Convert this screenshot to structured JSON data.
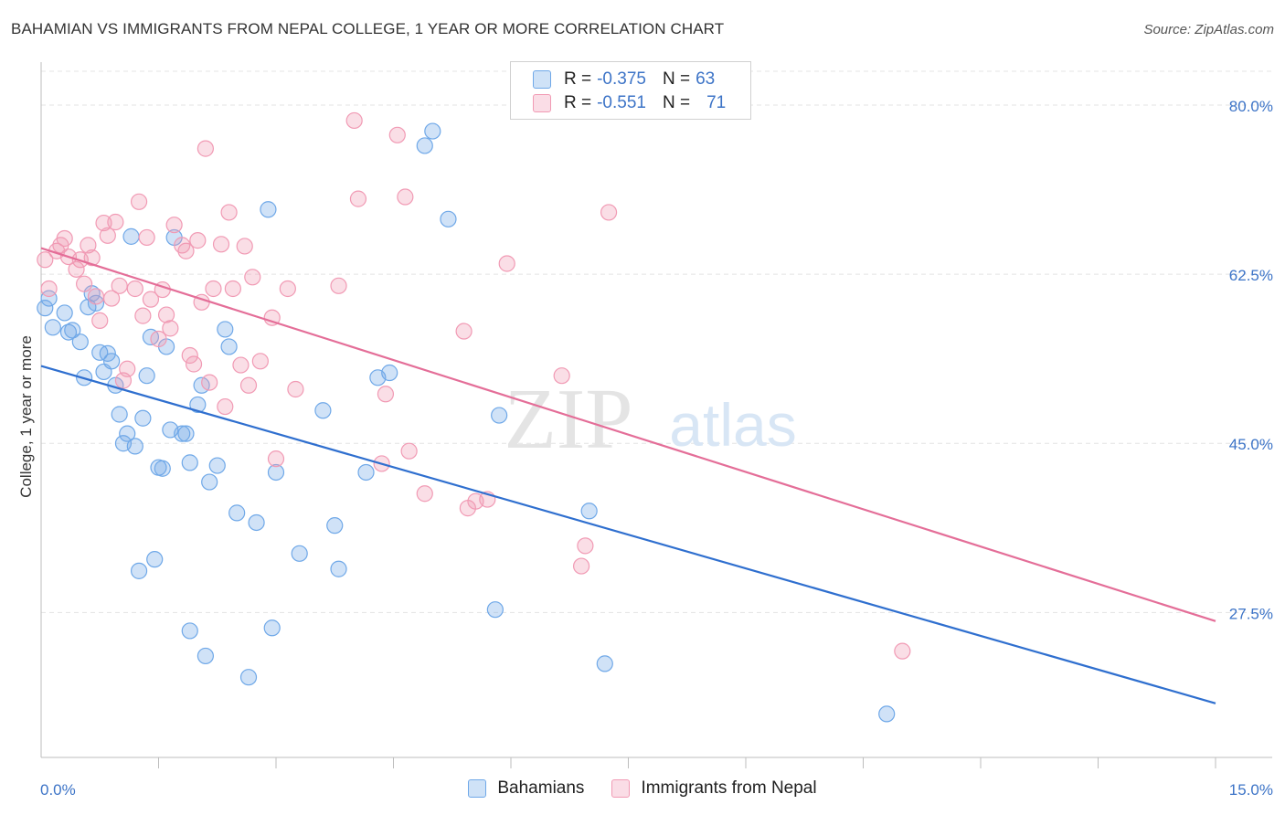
{
  "title": "BAHAMIAN VS IMMIGRANTS FROM NEPAL COLLEGE, 1 YEAR OR MORE CORRELATION CHART",
  "source": "Source: ZipAtlas.com",
  "watermark": {
    "zip": "ZIP",
    "atlas": "atlas"
  },
  "legend_box": {
    "rows": [
      {
        "r_label": "R =",
        "r_value": "-0.375",
        "n_label": "N =",
        "n_value": "63",
        "color": "#6fa8e8"
      },
      {
        "r_label": "R =",
        "r_value": "-0.551",
        "n_label": "N =",
        "n_value": "71",
        "color": "#f19ab4"
      }
    ]
  },
  "bottom_legend": [
    {
      "label": "Bahamians",
      "color": "#6fa8e8"
    },
    {
      "label": "Immigrants from Nepal",
      "color": "#f19ab4"
    }
  ],
  "chart_data": {
    "type": "scatter",
    "title": "BAHAMIAN VS IMMIGRANTS FROM NEPAL COLLEGE, 1 YEAR OR MORE CORRELATION CHART",
    "xlabel": "",
    "ylabel": "College, 1 year or more",
    "xlim": [
      0,
      15
    ],
    "ylim": [
      12.5,
      83.5
    ],
    "x_tick_labels": [
      "0.0%",
      "15.0%"
    ],
    "y_ticks": [
      27.5,
      45.0,
      62.5,
      80.0
    ],
    "y_tick_labels": [
      "27.5%",
      "45.0%",
      "62.5%",
      "80.0%"
    ],
    "grid": true,
    "legend_position": "top-center",
    "series": [
      {
        "name": "Bahamians",
        "color": "#6fa8e8",
        "line_color": "#2f6fcf",
        "trend": {
          "x": [
            0,
            15
          ],
          "y": [
            53.0,
            18.1
          ]
        },
        "points": [
          [
            0.05,
            59.0
          ],
          [
            0.1,
            60.0
          ],
          [
            0.15,
            57.0
          ],
          [
            0.3,
            58.5
          ],
          [
            0.35,
            56.5
          ],
          [
            0.4,
            56.7
          ],
          [
            0.5,
            55.5
          ],
          [
            0.55,
            51.8
          ],
          [
            0.6,
            59.1
          ],
          [
            0.65,
            60.5
          ],
          [
            0.7,
            59.5
          ],
          [
            0.75,
            54.4
          ],
          [
            0.8,
            52.4
          ],
          [
            0.85,
            54.3
          ],
          [
            0.9,
            53.5
          ],
          [
            0.95,
            51.0
          ],
          [
            1.0,
            48.0
          ],
          [
            1.05,
            45.0
          ],
          [
            1.1,
            46.0
          ],
          [
            1.2,
            44.7
          ],
          [
            1.15,
            66.4
          ],
          [
            1.35,
            52.0
          ],
          [
            1.3,
            47.6
          ],
          [
            1.4,
            56.0
          ],
          [
            1.5,
            42.5
          ],
          [
            1.55,
            42.4
          ],
          [
            1.6,
            55.0
          ],
          [
            1.65,
            46.4
          ],
          [
            1.7,
            66.3
          ],
          [
            1.8,
            46.0
          ],
          [
            1.9,
            43.0
          ],
          [
            2.0,
            49.0
          ],
          [
            2.05,
            51.0
          ],
          [
            2.15,
            41.0
          ],
          [
            2.25,
            42.7
          ],
          [
            2.35,
            56.8
          ],
          [
            2.4,
            55.0
          ],
          [
            2.5,
            37.8
          ],
          [
            2.75,
            36.8
          ],
          [
            2.9,
            69.2
          ],
          [
            2.95,
            25.9
          ],
          [
            3.0,
            42.0
          ],
          [
            3.3,
            33.6
          ],
          [
            3.6,
            48.4
          ],
          [
            3.75,
            36.5
          ],
          [
            3.8,
            32.0
          ],
          [
            4.15,
            42.0
          ],
          [
            4.3,
            51.8
          ],
          [
            4.45,
            52.3
          ],
          [
            4.9,
            75.8
          ],
          [
            5.0,
            77.3
          ],
          [
            5.2,
            68.2
          ],
          [
            5.8,
            27.8
          ],
          [
            5.85,
            47.9
          ],
          [
            7.0,
            38.0
          ],
          [
            7.2,
            22.2
          ],
          [
            10.8,
            17.0
          ],
          [
            1.25,
            31.8
          ],
          [
            1.45,
            33.0
          ],
          [
            1.9,
            25.6
          ],
          [
            2.1,
            23.0
          ],
          [
            2.65,
            20.8
          ],
          [
            1.85,
            46.0
          ]
        ]
      },
      {
        "name": "Immigrants from Nepal",
        "color": "#f19ab4",
        "line_color": "#e46e98",
        "trend": {
          "x": [
            0,
            15
          ],
          "y": [
            65.2,
            26.6
          ]
        },
        "points": [
          [
            0.05,
            64.0
          ],
          [
            0.1,
            61.0
          ],
          [
            0.2,
            64.9
          ],
          [
            0.25,
            65.5
          ],
          [
            0.3,
            66.2
          ],
          [
            0.35,
            64.3
          ],
          [
            0.45,
            63.0
          ],
          [
            0.5,
            64.0
          ],
          [
            0.55,
            61.5
          ],
          [
            0.6,
            65.5
          ],
          [
            0.65,
            64.2
          ],
          [
            0.7,
            60.2
          ],
          [
            0.75,
            57.7
          ],
          [
            0.8,
            67.8
          ],
          [
            0.85,
            66.5
          ],
          [
            0.9,
            60.0
          ],
          [
            0.95,
            67.9
          ],
          [
            1.0,
            61.3
          ],
          [
            1.05,
            51.5
          ],
          [
            1.1,
            52.7
          ],
          [
            1.2,
            61.0
          ],
          [
            1.25,
            70.0
          ],
          [
            1.3,
            58.2
          ],
          [
            1.35,
            66.3
          ],
          [
            1.4,
            59.9
          ],
          [
            1.5,
            55.8
          ],
          [
            1.55,
            60.9
          ],
          [
            1.6,
            58.3
          ],
          [
            1.65,
            56.9
          ],
          [
            1.7,
            67.6
          ],
          [
            1.8,
            65.5
          ],
          [
            1.85,
            64.9
          ],
          [
            1.9,
            54.1
          ],
          [
            1.95,
            53.2
          ],
          [
            2.0,
            66.0
          ],
          [
            2.05,
            59.6
          ],
          [
            2.1,
            75.5
          ],
          [
            2.15,
            51.3
          ],
          [
            2.2,
            61.0
          ],
          [
            2.3,
            65.6
          ],
          [
            2.35,
            48.8
          ],
          [
            2.4,
            68.9
          ],
          [
            2.45,
            61.0
          ],
          [
            2.55,
            53.1
          ],
          [
            2.6,
            65.4
          ],
          [
            2.65,
            51.0
          ],
          [
            2.7,
            62.2
          ],
          [
            2.8,
            53.5
          ],
          [
            2.95,
            58.0
          ],
          [
            3.0,
            43.4
          ],
          [
            3.15,
            61.0
          ],
          [
            3.25,
            50.6
          ],
          [
            3.8,
            61.3
          ],
          [
            4.0,
            78.4
          ],
          [
            4.05,
            70.3
          ],
          [
            4.35,
            42.9
          ],
          [
            4.4,
            50.1
          ],
          [
            4.55,
            76.9
          ],
          [
            4.65,
            70.5
          ],
          [
            4.7,
            44.2
          ],
          [
            4.9,
            39.8
          ],
          [
            5.4,
            56.6
          ],
          [
            5.45,
            38.3
          ],
          [
            5.55,
            39.0
          ],
          [
            5.7,
            39.2
          ],
          [
            5.95,
            63.6
          ],
          [
            6.65,
            52.0
          ],
          [
            6.9,
            32.3
          ],
          [
            6.95,
            34.4
          ],
          [
            7.25,
            68.9
          ],
          [
            11.0,
            23.5
          ]
        ]
      }
    ]
  }
}
